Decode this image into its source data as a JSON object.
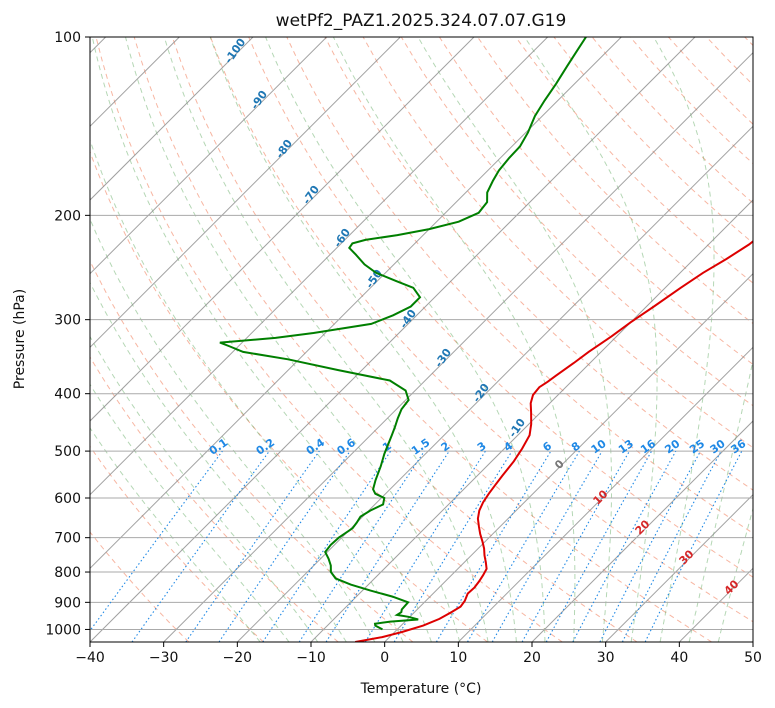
{
  "chart_data": {
    "type": "line",
    "title": "wetPf2_PAZ1.2025.324.07.07.G19",
    "xlabel": "Temperature (°C)",
    "ylabel": "Pressure (hPa)",
    "xlim": [
      -40,
      50
    ],
    "ylim": [
      1050,
      100
    ],
    "yscale": "log",
    "grid": true,
    "x_ticks": [
      "−40",
      "−30",
      "−20",
      "−10",
      "0",
      "10",
      "20",
      "30",
      "40",
      "50"
    ],
    "y_ticks": [
      "1000",
      "900",
      "800",
      "700",
      "600",
      "500",
      "400",
      "300",
      "200",
      "100"
    ],
    "dry_adiabat_labels": [
      "-100",
      "-90",
      "-80",
      "-70",
      "-60",
      "-50",
      "-40",
      "-30",
      "-20",
      "-10"
    ],
    "mixing_ratio_labels": [
      "0.1",
      "0.2",
      "0.4",
      "0.6",
      "1",
      "1.5",
      "2",
      "3",
      "4",
      "6",
      "8",
      "10",
      "13",
      "16",
      "20",
      "25",
      "30",
      "36"
    ],
    "moist_adiabat_labels": [
      "0",
      "10",
      "20",
      "30",
      "40"
    ],
    "series": [
      {
        "color": "#dd0000",
        "points": [
          [
            -4.0,
            1050
          ],
          [
            -1.0,
            1030
          ],
          [
            1.0,
            1010
          ],
          [
            3.0,
            985
          ],
          [
            4.3,
            960
          ],
          [
            5.0,
            935
          ],
          [
            5.5,
            915
          ],
          [
            5.3,
            895
          ],
          [
            4.7,
            870
          ],
          [
            4.8,
            850
          ],
          [
            4.6,
            830
          ],
          [
            4.3,
            810
          ],
          [
            3.9,
            790
          ],
          [
            2.9,
            770
          ],
          [
            1.8,
            750
          ],
          [
            0.8,
            730
          ],
          [
            -0.4,
            710
          ],
          [
            -1.7,
            690
          ],
          [
            -2.9,
            670
          ],
          [
            -4.1,
            650
          ],
          [
            -5.0,
            630
          ],
          [
            -5.6,
            610
          ],
          [
            -6.0,
            590
          ],
          [
            -6.3,
            570
          ],
          [
            -6.6,
            550
          ],
          [
            -7.0,
            520
          ],
          [
            -7.6,
            495
          ],
          [
            -8.4,
            470
          ],
          [
            -9.7,
            450
          ],
          [
            -11.3,
            430
          ],
          [
            -12.6,
            415
          ],
          [
            -13.4,
            402
          ],
          [
            -13.6,
            390
          ],
          [
            -13.2,
            382
          ],
          [
            -12.9,
            373
          ],
          [
            -12.2,
            355
          ],
          [
            -11.7,
            340
          ],
          [
            -10.7,
            320
          ],
          [
            -10.0,
            303
          ],
          [
            -9.0,
            285
          ],
          [
            -7.9,
            265
          ],
          [
            -6.9,
            250
          ],
          [
            -5.6,
            237
          ],
          [
            -4.5,
            224
          ],
          [
            -4.0,
            213
          ],
          [
            -3.7,
            200
          ],
          [
            -3.5,
            187
          ],
          [
            -3.2,
            175
          ],
          [
            -3.0,
            165
          ],
          [
            -2.4,
            157
          ],
          [
            -2.4,
            150
          ],
          [
            -2.6,
            143
          ],
          [
            -2.8,
            133
          ],
          [
            -2.9,
            125
          ],
          [
            -2.6,
            118
          ],
          [
            -2.4,
            113
          ],
          [
            -2.4,
            109
          ],
          [
            -2.6,
            104
          ],
          [
            -2.8,
            100
          ]
        ]
      },
      {
        "color": "#007f00",
        "points": [
          [
            -2.0,
            1000
          ],
          [
            -3.5,
            985
          ],
          [
            -3.8,
            978
          ],
          [
            -2.0,
            970
          ],
          [
            1.5,
            962
          ],
          [
            -0.2,
            952
          ],
          [
            -2.0,
            945
          ],
          [
            -1.8,
            935
          ],
          [
            -2.1,
            925
          ],
          [
            -2.2,
            900
          ],
          [
            -5.1,
            880
          ],
          [
            -8.9,
            860
          ],
          [
            -12.4,
            840
          ],
          [
            -15.3,
            820
          ],
          [
            -16.8,
            800
          ],
          [
            -17.7,
            780
          ],
          [
            -18.9,
            760
          ],
          [
            -20.3,
            740
          ],
          [
            -20.5,
            720
          ],
          [
            -20.4,
            700
          ],
          [
            -19.8,
            675
          ],
          [
            -20.0,
            660
          ],
          [
            -20.3,
            645
          ],
          [
            -19.8,
            630
          ],
          [
            -18.9,
            615
          ],
          [
            -19.6,
            600
          ],
          [
            -21.4,
            590
          ],
          [
            -22.3,
            580
          ],
          [
            -23.2,
            560
          ],
          [
            -24.4,
            530
          ],
          [
            -25.6,
            505
          ],
          [
            -27.1,
            470
          ],
          [
            -27.8,
            455
          ],
          [
            -28.6,
            440
          ],
          [
            -29.3,
            425
          ],
          [
            -29.6,
            410
          ],
          [
            -31.3,
            395
          ],
          [
            -34.8,
            380
          ],
          [
            -43.2,
            365
          ],
          [
            -51.5,
            350
          ],
          [
            -58.6,
            340
          ],
          [
            -61.1,
            333
          ],
          [
            -63.0,
            328
          ],
          [
            -56.1,
            322
          ],
          [
            -51.6,
            316
          ],
          [
            -45.0,
            305
          ],
          [
            -43.2,
            295
          ],
          [
            -42.0,
            285
          ],
          [
            -42.0,
            275
          ],
          [
            -44.2,
            265
          ],
          [
            -47.5,
            258
          ],
          [
            -51.3,
            250
          ],
          [
            -54.0,
            242
          ],
          [
            -56.5,
            233
          ],
          [
            -58.3,
            227
          ],
          [
            -58.5,
            223
          ],
          [
            -57.2,
            220
          ],
          [
            -53.5,
            216
          ],
          [
            -50.0,
            211
          ],
          [
            -47.0,
            205
          ],
          [
            -45.5,
            198
          ],
          [
            -45.8,
            190
          ],
          [
            -47.1,
            183
          ],
          [
            -47.9,
            175
          ],
          [
            -48.5,
            168
          ],
          [
            -48.8,
            160
          ],
          [
            -48.9,
            153
          ],
          [
            -49.7,
            145
          ],
          [
            -51.0,
            136
          ],
          [
            -51.8,
            128
          ],
          [
            -52.5,
            120
          ],
          [
            -53.4,
            112
          ],
          [
            -54.2,
            105
          ],
          [
            -54.8,
            100
          ]
        ]
      }
    ]
  }
}
